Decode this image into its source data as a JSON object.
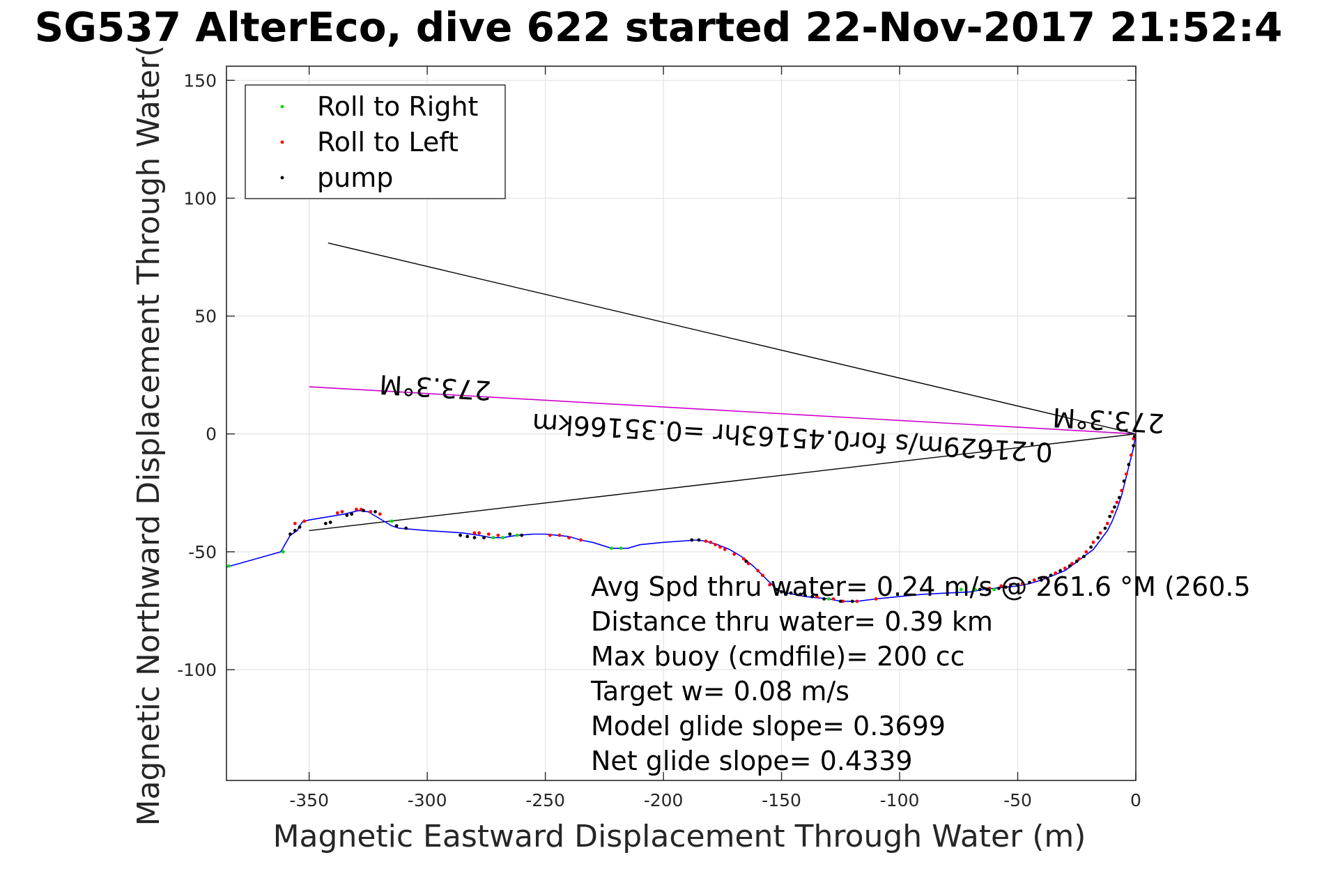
{
  "chart_data": {
    "type": "scatter",
    "title": "SG537 AlterEco, dive 622 started 22-Nov-2017 21:52:4",
    "xlabel": "Magnetic Eastward Displacement Through Water (m)",
    "ylabel": "Magnetic Northward Displacement Through Water(",
    "xlim": [
      -385,
      0
    ],
    "ylim": [
      -147,
      156
    ],
    "xticks": [
      -350,
      -300,
      -250,
      -200,
      -150,
      -100,
      -50,
      0
    ],
    "yticks": [
      150,
      100,
      50,
      0,
      -50,
      -100
    ],
    "grid": true,
    "legend_position": "top-left",
    "colors": {
      "track": "#0000ff",
      "roll_right": "#00dd00",
      "roll_left": "#ff0000",
      "pump": "#000000",
      "heading_line": "#cc00cc",
      "fan_line": "#000000"
    },
    "legend": [
      {
        "label": "Roll to Right",
        "color": "#00dd00"
      },
      {
        "label": "Roll to Left",
        "color": "#ff0000"
      },
      {
        "label": "pump",
        "color": "#000000"
      }
    ],
    "track": {
      "x": [
        0,
        -0.5,
        -1,
        -2,
        -3,
        -4,
        -5,
        -6,
        -7,
        -8,
        -10,
        -12,
        -15,
        -18,
        -22,
        -26,
        -30,
        -35,
        -40,
        -45,
        -50,
        -55,
        -60,
        -65,
        -70,
        -80,
        -90,
        -100,
        -110,
        -118,
        -125,
        -130,
        -135,
        -140,
        -145,
        -150,
        -152,
        -155,
        -158,
        -162,
        -167,
        -172,
        -177,
        -182,
        -186,
        -200,
        -210,
        -215,
        -222,
        -230,
        -235,
        -240,
        -245,
        -250,
        -255,
        -262,
        -268,
        -273,
        -278,
        -285,
        -300,
        -312,
        -315,
        -320,
        -325,
        -329,
        -335,
        -350,
        -352,
        -353,
        -354,
        -355,
        -358,
        -362,
        -385
      ],
      "y": [
        0,
        -3,
        -6,
        -10,
        -14,
        -18,
        -22,
        -26,
        -29,
        -32,
        -37,
        -41,
        -45,
        -49,
        -52,
        -55,
        -58,
        -60,
        -62,
        -63.5,
        -64.5,
        -65,
        -65.5,
        -66,
        -67,
        -67.5,
        -68,
        -69,
        -70,
        -71,
        -71,
        -70,
        -69.5,
        -69,
        -68,
        -67,
        -66,
        -63,
        -60,
        -56,
        -52,
        -49,
        -47,
        -45.5,
        -45,
        -46,
        -47,
        -48.5,
        -48.5,
        -46,
        -45,
        -43.5,
        -43,
        -42.5,
        -42.5,
        -43,
        -44,
        -44,
        -43,
        -42,
        -41,
        -40,
        -39,
        -36,
        -33,
        -32.5,
        -34,
        -36.5,
        -37,
        -37.5,
        -39,
        -41,
        -43,
        -50,
        -56.5
      ]
    },
    "roll_right": {
      "x": [
        -60,
        -68,
        -74,
        -130,
        -218,
        -222,
        -262,
        -268,
        -272,
        -315,
        -361,
        -384
      ],
      "y": [
        -66,
        -66,
        -66,
        -70,
        -48.5,
        -48.5,
        -43,
        -44,
        -44,
        -37,
        -50,
        -56
      ]
    },
    "roll_left": {
      "x": [
        -1,
        -2,
        -4,
        -6,
        -8,
        -10,
        -12,
        -15,
        -18,
        -21,
        -24,
        -27,
        -30,
        -34,
        -38,
        -43,
        -48,
        -53,
        -57,
        -62,
        -110,
        -118,
        -124,
        -128,
        -135,
        -155,
        -158,
        -160,
        -164,
        -166,
        -170,
        -174,
        -176,
        -178,
        -180,
        -182,
        -235,
        -240,
        -244,
        -248,
        -270,
        -274,
        -278,
        -280,
        -320,
        -324,
        -328,
        -330,
        -336,
        -338,
        -352,
        -356
      ],
      "y": [
        -2,
        -9,
        -17,
        -24,
        -29,
        -33,
        -38,
        -42,
        -46,
        -50,
        -53,
        -55,
        -57,
        -59,
        -61,
        -62,
        -63.5,
        -64,
        -64.5,
        -65.5,
        -70,
        -71,
        -71,
        -70,
        -69,
        -64,
        -60,
        -58,
        -55,
        -53,
        -51,
        -49,
        -48,
        -47,
        -46,
        -45.5,
        -45,
        -44,
        -43,
        -43,
        -43,
        -42.5,
        -42,
        -42,
        -34,
        -33,
        -32,
        -32,
        -33,
        -33.5,
        -37,
        -38
      ]
    },
    "pump": {
      "x": [
        -0.5,
        -1,
        -3,
        -5,
        -7,
        -9,
        -11,
        -13,
        -16,
        -19,
        -22,
        -25,
        -28,
        -32,
        -36,
        -40,
        -45,
        -50,
        -55,
        -58,
        -63,
        -66,
        -120,
        -125,
        -132,
        -137,
        -140,
        -142,
        -146,
        -150,
        -152,
        -165,
        -185,
        -188,
        -260,
        -265,
        -276,
        -280,
        -283,
        -286,
        -309,
        -313,
        -322,
        -327,
        -332,
        -334,
        -341,
        -343,
        -354,
        -356,
        -358
      ],
      "y": [
        -1,
        -5,
        -13,
        -20,
        -27,
        -31,
        -35,
        -40,
        -44,
        -48,
        -52,
        -54,
        -56,
        -58,
        -60,
        -62,
        -63,
        -64,
        -65,
        -65.5,
        -66,
        -66,
        -71,
        -71,
        -70,
        -69,
        -68.5,
        -68,
        -67.5,
        -67,
        -66,
        -54,
        -45,
        -45,
        -43,
        -42.5,
        -44,
        -44,
        -43.5,
        -43,
        -40,
        -39,
        -33,
        -32.5,
        -34,
        -34.5,
        -37.5,
        -38,
        -39.5,
        -41,
        -42.5
      ]
    },
    "heading_line": {
      "x": [
        0,
        -350
      ],
      "y": [
        0,
        20
      ]
    },
    "fan_lines": [
      {
        "x": [
          0,
          -342
        ],
        "y": [
          0,
          81
        ]
      },
      {
        "x": [
          0,
          -350
        ],
        "y": [
          0,
          -41
        ]
      }
    ],
    "annotations": {
      "heading_near": {
        "text": "273.3°M",
        "x": -35,
        "y": 11
      },
      "speed_label": {
        "text": "0.21629m/s for0.45163hr =0.35166km",
        "x": -35,
        "y": -4
      },
      "heading_far": {
        "text": "273.3°M",
        "x": -320,
        "y": 25
      }
    },
    "stats": [
      "Avg Spd thru water=  0.24 m/s @ 261.6 °M (260.5",
      "Distance thru water=  0.39 km",
      "Max buoy (cmdfile)= 200 cc",
      "Target w= 0.08 m/s",
      "Model glide slope= 0.3699",
      "Net glide slope= 0.4339"
    ]
  }
}
